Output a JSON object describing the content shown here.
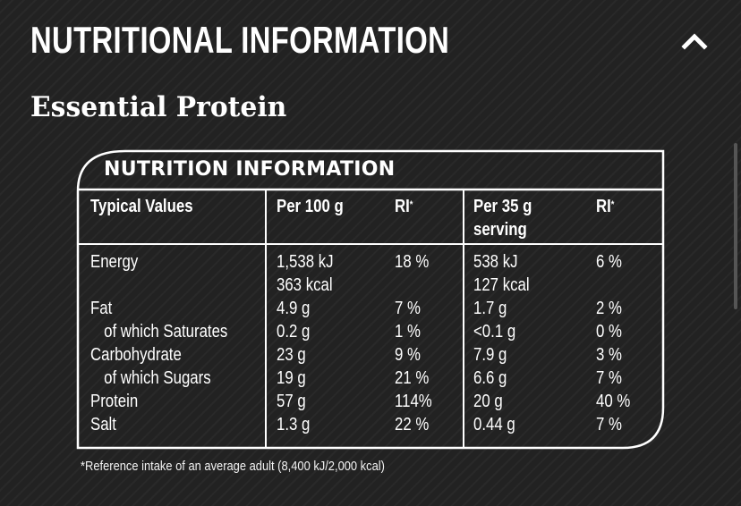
{
  "section": {
    "title": "NUTRITIONAL INFORMATION",
    "toggle_icon": "chevron-up-icon"
  },
  "product": {
    "name": "Essential Protein"
  },
  "label": {
    "heading": "NUTRITION INFORMATION",
    "headers": {
      "typical_values": "Typical Values",
      "per_100g": "Per 100 g",
      "ri_1": "RI",
      "ri_1_mark": "*",
      "per_serving_line1": "Per 35 g",
      "per_serving_line2": "serving",
      "ri_2": "RI",
      "ri_2_mark": "*"
    },
    "rows": [
      {
        "name": "Energy",
        "per100": "1,538 kJ",
        "ri100": "18 %",
        "serving": "538 kJ",
        "riserving": "6 %"
      },
      {
        "name": "",
        "per100": "363 kcal",
        "ri100": "",
        "serving": "127 kcal",
        "riserving": ""
      },
      {
        "name": "Fat",
        "per100": "4.9 g",
        "ri100": "7 %",
        "serving": "1.7 g",
        "riserving": "2 %"
      },
      {
        "name": "of which Saturates",
        "per100": "0.2 g",
        "ri100": "1 %",
        "serving": "<0.1 g",
        "riserving": "0 %"
      },
      {
        "name": "Carbohydrate",
        "per100": "23 g",
        "ri100": "9 %",
        "serving": "7.9 g",
        "riserving": "3 %"
      },
      {
        "name": "of which Sugars",
        "per100": "19 g",
        "ri100": "21 %",
        "serving": "6.6 g",
        "riserving": "7 %"
      },
      {
        "name": "Protein",
        "per100": "57 g",
        "ri100": "114%",
        "serving": "20 g",
        "riserving": "40 %"
      },
      {
        "name": "Salt",
        "per100": "1.3 g",
        "ri100": "22 %",
        "serving": "0.44 g",
        "riserving": "7 %"
      }
    ],
    "footnote": "*Reference intake of an average adult (8,400 kJ/2,000 kcal)"
  }
}
